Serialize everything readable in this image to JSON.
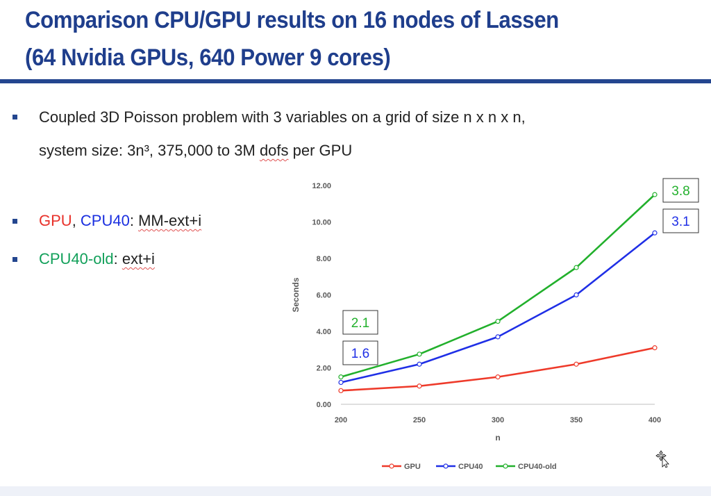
{
  "slide": {
    "title_line1": "Comparison CPU/GPU results on 16 nodes of Lassen",
    "title_line2": "(64 Nvidia GPUs, 640 Power 9 cores)",
    "bullet1_line1": "Coupled 3D Poisson problem with 3 variables on a grid of size n x n x n,",
    "bullet1_line2_a": "system size: 3n³,  375,000 to 3M ",
    "bullet1_line2_b": "dofs",
    "bullet1_line2_c": " per GPU",
    "bullet2_gpu": "GPU",
    "bullet2_sep": ", ",
    "bullet2_cpu": "CPU40",
    "bullet2_colon": ": ",
    "bullet2_method": "MM-ext+i",
    "bullet3_cpuold": "CPU40-old",
    "bullet3_colon": ": ",
    "bullet3_method": "ext+i"
  },
  "colors": {
    "gpu": "#ee3a2a",
    "cpu40": "#1f2fe6",
    "cpu40_old": "#22b02c",
    "title": "#1f3e8c"
  },
  "chart_data": {
    "type": "line",
    "xlabel": "n",
    "ylabel": "Seconds",
    "x": [
      200,
      250,
      300,
      350,
      400
    ],
    "xticks": [
      "200",
      "250",
      "300",
      "350",
      "400"
    ],
    "yticks": [
      "0.00",
      "2.00",
      "4.00",
      "6.00",
      "8.00",
      "10.00",
      "12.00"
    ],
    "ylim": [
      0,
      12
    ],
    "grid": false,
    "legend": "bottom",
    "series": [
      {
        "name": "GPU",
        "values": [
          0.75,
          1.0,
          1.5,
          2.2,
          3.1
        ]
      },
      {
        "name": "CPU40",
        "values": [
          1.2,
          2.2,
          3.7,
          6.0,
          9.4
        ]
      },
      {
        "name": "CPU40-old",
        "values": [
          1.5,
          2.75,
          4.55,
          7.5,
          11.5
        ]
      }
    ],
    "annotations": [
      {
        "text": "2.1",
        "series": "CPU40-old",
        "x": 200
      },
      {
        "text": "1.6",
        "series": "CPU40",
        "x": 200
      },
      {
        "text": "3.8",
        "series": "CPU40-old",
        "x": 400
      },
      {
        "text": "3.1",
        "series": "CPU40",
        "x": 400
      }
    ]
  }
}
